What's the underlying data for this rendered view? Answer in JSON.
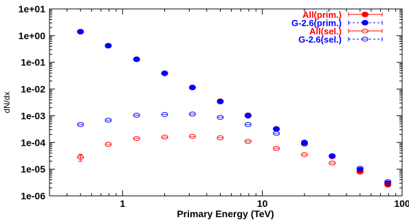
{
  "chart_data": {
    "type": "scatter",
    "xlabel": "Primary Energy (TeV)",
    "ylabel": "dN/dx",
    "x_scale": "log",
    "y_scale": "log",
    "xlim": [
      0.3,
      100
    ],
    "ylim": [
      1e-06,
      10
    ],
    "grid": false,
    "legend_position": "top-right",
    "x_ticks": [
      {
        "value": 1,
        "label": "1"
      },
      {
        "value": 10,
        "label": "10"
      },
      {
        "value": 100,
        "label": "100"
      }
    ],
    "y_ticks": [
      {
        "value": 10,
        "label": "1e+01"
      },
      {
        "value": 1,
        "label": "1e+00"
      },
      {
        "value": 0.1,
        "label": "1e-01"
      },
      {
        "value": 0.01,
        "label": "1e-02"
      },
      {
        "value": 0.001,
        "label": "1e-03"
      },
      {
        "value": 0.0001,
        "label": "1e-04"
      },
      {
        "value": 1e-05,
        "label": "1e-05"
      },
      {
        "value": 1e-06,
        "label": "1e-06"
      }
    ],
    "series": [
      {
        "name": "All(prim.)",
        "color": "#ff0000",
        "marker": "filled-circle",
        "points": [
          [
            0.5,
            1.4
          ],
          [
            0.79,
            0.42
          ],
          [
            1.26,
            0.13
          ],
          [
            2.0,
            0.039
          ],
          [
            3.16,
            0.0115
          ],
          [
            5.0,
            0.0035
          ],
          [
            7.9,
            0.00105
          ],
          [
            12.6,
            0.00032
          ],
          [
            20.0,
            9.5e-05
          ],
          [
            31.6,
            3e-05
          ],
          [
            50.0,
            8.5e-06
          ],
          [
            79.0,
            2.6e-06
          ]
        ]
      },
      {
        "name": "G-2.6(prim.)",
        "color": "#0000ff",
        "marker": "filled-circle",
        "points": [
          [
            0.5,
            1.4
          ],
          [
            0.79,
            0.42
          ],
          [
            1.26,
            0.13
          ],
          [
            2.0,
            0.039
          ],
          [
            3.16,
            0.0115
          ],
          [
            5.0,
            0.0034
          ],
          [
            7.9,
            0.001
          ],
          [
            12.6,
            0.00032
          ],
          [
            20.0,
            0.0001
          ],
          [
            31.6,
            3.1e-05
          ],
          [
            50.0,
            9.5e-06
          ],
          [
            79.0,
            3e-06
          ]
        ]
      },
      {
        "name": "All(sel.)",
        "color": "#ff0000",
        "marker": "open-circle",
        "points": [
          [
            0.5,
            2.8e-05
          ],
          [
            0.79,
            8.5e-05
          ],
          [
            1.26,
            0.00014
          ],
          [
            2.0,
            0.00016
          ],
          [
            3.16,
            0.00017
          ],
          [
            5.0,
            0.00015
          ],
          [
            7.9,
            0.00011
          ],
          [
            12.6,
            6e-05
          ],
          [
            20.0,
            3.5e-05
          ],
          [
            31.6,
            1.7e-05
          ],
          [
            50.0,
            7.8e-06
          ],
          [
            79.0,
            2.7e-06
          ]
        ],
        "y_errors": [
          8e-06,
          1e-05,
          1.2e-05,
          1e-05,
          1e-05,
          1e-05,
          8e-06,
          5e-06,
          3e-06,
          1.5e-06,
          7e-07,
          3e-07
        ]
      },
      {
        "name": "G-2.6(sel.)",
        "color": "#0000ff",
        "marker": "open-circle",
        "points": [
          [
            0.5,
            0.00047
          ],
          [
            0.79,
            0.00068
          ],
          [
            1.26,
            0.00105
          ],
          [
            2.0,
            0.00112
          ],
          [
            3.16,
            0.00116
          ],
          [
            5.0,
            0.00087
          ],
          [
            7.9,
            0.00047
          ],
          [
            12.6,
            0.00022
          ],
          [
            20.0,
            8.8e-05
          ],
          [
            31.6,
            3.1e-05
          ],
          [
            50.0,
            1.08e-05
          ],
          [
            79.0,
            3.4e-06
          ]
        ]
      }
    ]
  }
}
